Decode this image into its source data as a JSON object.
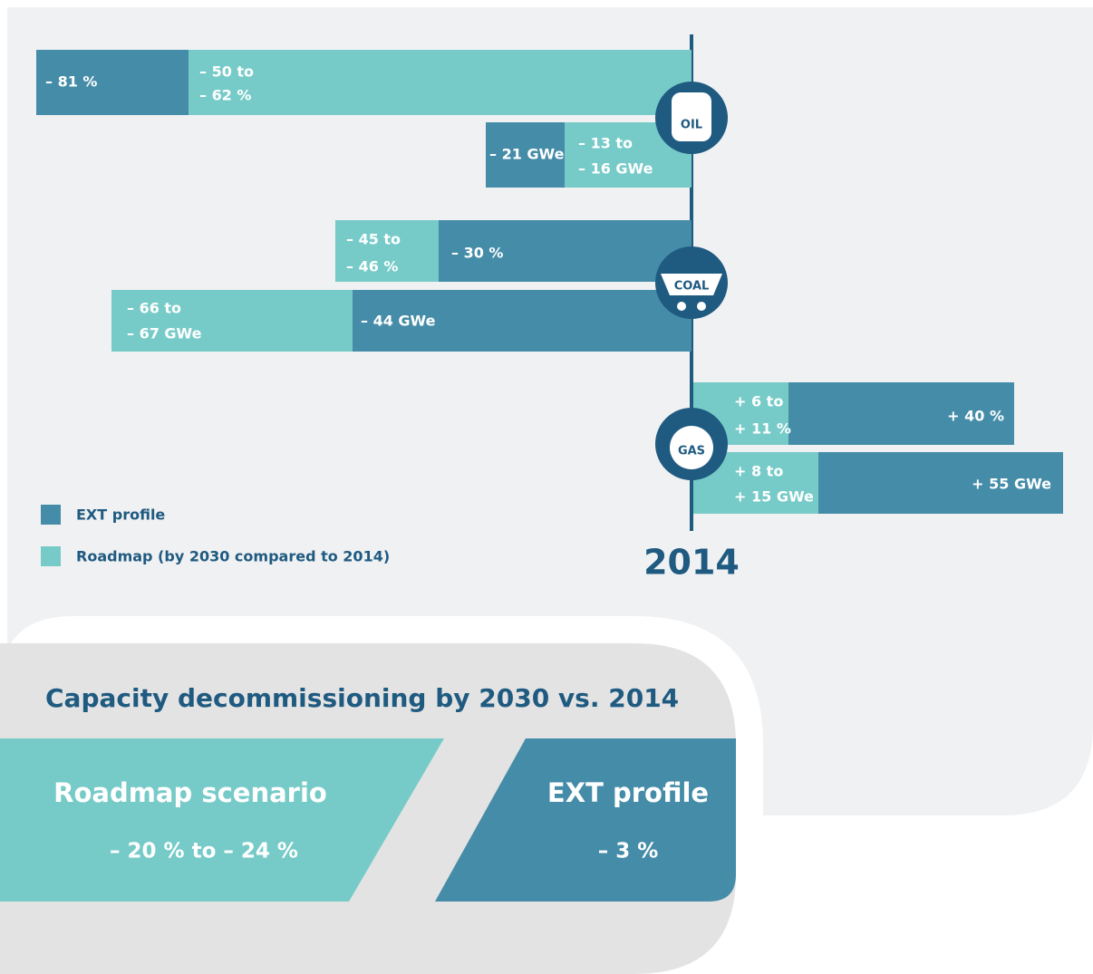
{
  "rows": [
    {
      "ext": [
        "– 81 %"
      ],
      "roadmap": [
        "– 50 to",
        "– 62 %"
      ]
    },
    {
      "ext": [
        "– 21 GWe"
      ],
      "roadmap": [
        "– 13 to",
        "– 16 GWe"
      ]
    },
    {
      "ext": [
        "– 30 %"
      ],
      "roadmap": [
        "– 45 to",
        "– 46 %"
      ]
    },
    {
      "ext": [
        "– 44 GWe"
      ],
      "roadmap": [
        "– 66 to",
        "– 67 GWe"
      ]
    },
    {
      "ext": [
        "+ 40 %"
      ],
      "roadmap": [
        "+ 6 to",
        "+ 11 %"
      ]
    },
    {
      "ext": [
        "+ 55 GWe"
      ],
      "roadmap": [
        "+ 8 to",
        "+ 15 GWe"
      ]
    }
  ],
  "icons": [
    "OIL",
    "COAL",
    "GAS"
  ],
  "legend": [
    "EXT profile",
    "Roadmap (by 2030 compared to 2014)"
  ],
  "axis_label": "2014",
  "summary": {
    "title": "Capacity decommissioning by 2030 vs. 2014",
    "scenarios": [
      {
        "name": "Roadmap scenario",
        "value": "– 20 % to – 24 %"
      },
      {
        "name": "EXT profile",
        "value": "– 3 %"
      }
    ]
  }
}
